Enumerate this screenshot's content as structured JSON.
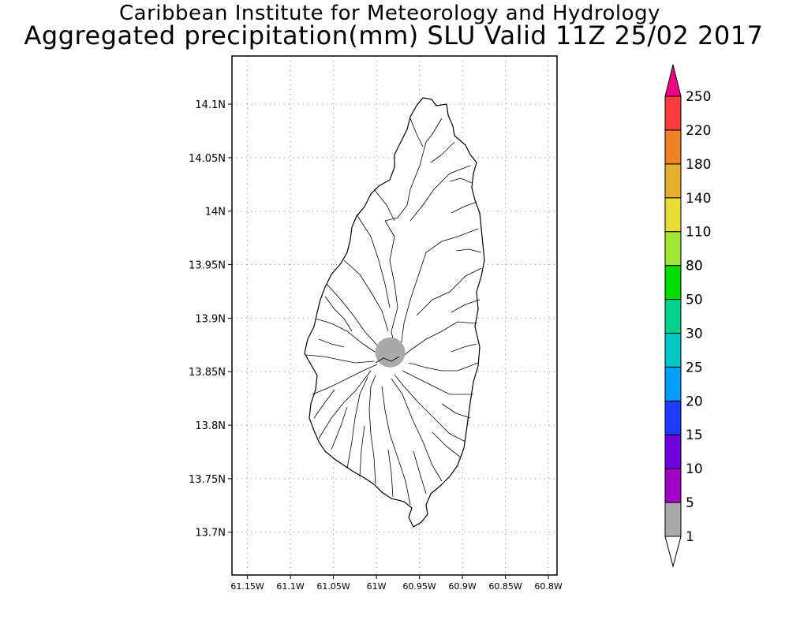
{
  "header": {
    "title": "Caribbean Institute for Meteorology and Hydrology",
    "subtitle": "Aggregated precipitation(mm) SLU Valid 11Z 25/02 2017"
  },
  "map": {
    "lat_range": [
      13.66,
      14.145
    ],
    "lon_range": [
      -61.168,
      -60.79
    ],
    "lat_ticks": [
      {
        "value": 14.1,
        "label": "14.1N"
      },
      {
        "value": 14.05,
        "label": "14.05N"
      },
      {
        "value": 14.0,
        "label": "14N"
      },
      {
        "value": 13.95,
        "label": "13.95N"
      },
      {
        "value": 13.9,
        "label": "13.9N"
      },
      {
        "value": 13.85,
        "label": "13.85N"
      },
      {
        "value": 13.8,
        "label": "13.8N"
      },
      {
        "value": 13.75,
        "label": "13.75N"
      },
      {
        "value": 13.7,
        "label": "13.7N"
      }
    ],
    "lon_ticks": [
      {
        "value": -61.15,
        "label": "61.15W"
      },
      {
        "value": -61.1,
        "label": "61.1W"
      },
      {
        "value": -61.05,
        "label": "61.05W"
      },
      {
        "value": -61.0,
        "label": "61W"
      },
      {
        "value": -60.95,
        "label": "60.95W"
      },
      {
        "value": -60.9,
        "label": "60.9W"
      },
      {
        "value": -60.85,
        "label": "60.85W"
      },
      {
        "value": -60.8,
        "label": "60.8W"
      }
    ],
    "gridlines": true,
    "precip_patch": {
      "lon": -60.984,
      "lat": 13.868,
      "range_mm": "1-5",
      "color": "#aaaaaa"
    }
  },
  "colorbar": {
    "levels": [
      "1",
      "5",
      "10",
      "15",
      "20",
      "25",
      "30",
      "50",
      "80",
      "110",
      "140",
      "180",
      "220",
      "250"
    ],
    "colors": [
      "#aaaaaa",
      "#a000c8",
      "#6e00dc",
      "#1e3cff",
      "#00a0ff",
      "#00c8c8",
      "#00d28c",
      "#00dc00",
      "#a0e632",
      "#e6dc32",
      "#e6af2d",
      "#f08228",
      "#fa3c3c",
      "#f00082"
    ],
    "bottom_color": "#ffffff"
  }
}
